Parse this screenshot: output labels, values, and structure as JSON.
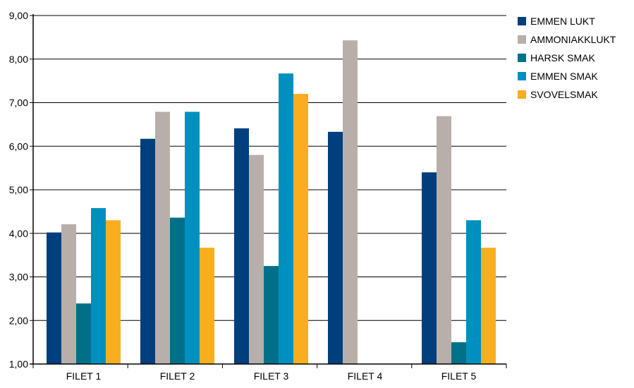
{
  "chart_data": {
    "type": "bar",
    "categories": [
      "FILET 1",
      "FILET 2",
      "FILET 3",
      "FILET 4",
      "FILET 5"
    ],
    "series": [
      {
        "name": "EMMEN LUKT",
        "color": "#003F7D",
        "values": [
          4.02,
          6.17,
          6.41,
          6.33,
          5.4
        ]
      },
      {
        "name": "AMMONIAKKLUKT",
        "color": "#B8AFAA",
        "values": [
          4.21,
          6.79,
          5.8,
          8.43,
          6.69
        ]
      },
      {
        "name": "HARSK SMAK",
        "color": "#00708A",
        "values": [
          2.39,
          4.36,
          3.25,
          null,
          1.5
        ]
      },
      {
        "name": "EMMEN SMAK",
        "color": "#0090C0",
        "values": [
          4.58,
          6.79,
          7.67,
          null,
          4.3
        ]
      },
      {
        "name": "SVOVELSMAK",
        "color": "#F9AE20",
        "values": [
          4.3,
          3.67,
          7.2,
          null,
          3.67
        ]
      }
    ],
    "ylim": [
      1,
      9
    ],
    "yticks": [
      1,
      2,
      3,
      4,
      5,
      6,
      7,
      8,
      9
    ],
    "ytick_labels": [
      "1,00",
      "2,00",
      "3,00",
      "4,00",
      "5,00",
      "6,00",
      "7,00",
      "8,00",
      "9,00"
    ],
    "title": "",
    "xlabel": "",
    "ylabel": "",
    "grid": "horizontal",
    "legend": "right"
  }
}
